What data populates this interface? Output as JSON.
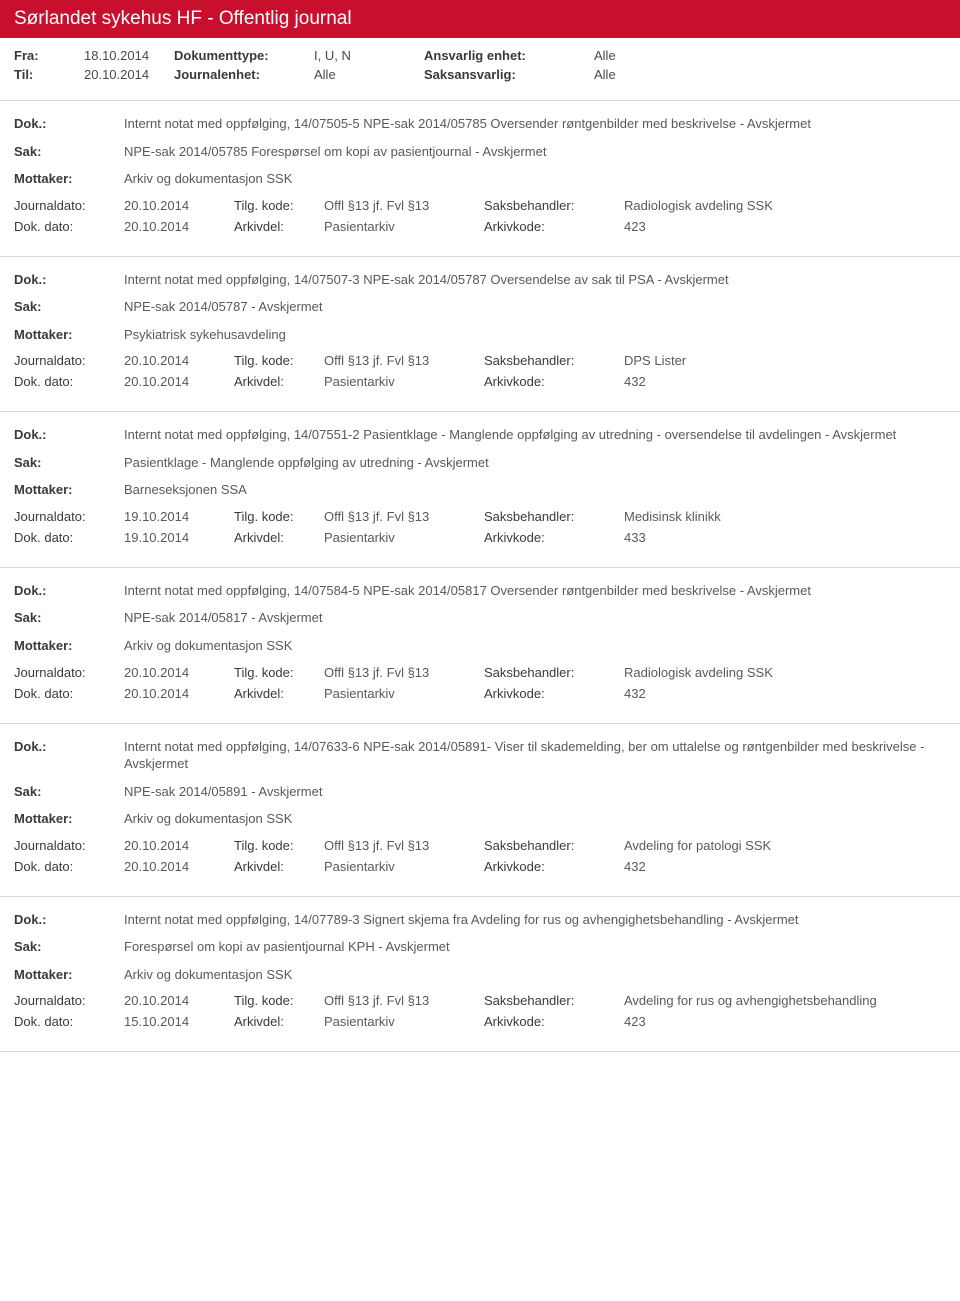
{
  "header": {
    "title": "Sørlandet sykehus HF - Offentlig journal"
  },
  "meta": {
    "fra_lbl": "Fra:",
    "fra_val": "18.10.2014",
    "til_lbl": "Til:",
    "til_val": "20.10.2014",
    "doktype_lbl": "Dokumenttype:",
    "doktype_val": "I, U, N",
    "journalenhet_lbl": "Journalenhet:",
    "journalenhet_val": "Alle",
    "ansvarlig_lbl": "Ansvarlig enhet:",
    "ansvarlig_val": "Alle",
    "saksansvarlig_lbl": "Saksansvarlig:",
    "saksansvarlig_val": "Alle"
  },
  "labels": {
    "dok": "Dok.:",
    "sak": "Sak:",
    "mottaker": "Mottaker:",
    "journaldato": "Journaldato:",
    "tilgkode": "Tilg. kode:",
    "saksbehandler": "Saksbehandler:",
    "dokdato": "Dok. dato:",
    "arkivdel": "Arkivdel:",
    "arkivkode": "Arkivkode:"
  },
  "entries": [
    {
      "dok": "Internt notat med oppfølging, 14/07505-5 NPE-sak 2014/05785 Oversender røntgenbilder med beskrivelse - Avskjermet",
      "sak": "NPE-sak 2014/05785 Forespørsel om kopi av pasientjournal - Avskjermet",
      "mottaker": "Arkiv og dokumentasjon SSK",
      "journaldato": "20.10.2014",
      "tilgkode": "Offl §13 jf. Fvl §13",
      "saksbehandler": "Radiologisk avdeling SSK",
      "dokdato": "20.10.2014",
      "arkivdel": "Pasientarkiv",
      "arkivkode": "423"
    },
    {
      "dok": "Internt notat med oppfølging, 14/07507-3 NPE-sak 2014/05787 Oversendelse av sak til PSA - Avskjermet",
      "sak": "NPE-sak 2014/05787 - Avskjermet",
      "mottaker": "Psykiatrisk sykehusavdeling",
      "journaldato": "20.10.2014",
      "tilgkode": "Offl §13 jf. Fvl §13",
      "saksbehandler": "DPS Lister",
      "dokdato": "20.10.2014",
      "arkivdel": "Pasientarkiv",
      "arkivkode": "432"
    },
    {
      "dok": "Internt notat med oppfølging, 14/07551-2 Pasientklage - Manglende oppfølging av utredning - oversendelse til avdelingen - Avskjermet",
      "sak": "Pasientklage - Manglende oppfølging av utredning - Avskjermet",
      "mottaker": "Barneseksjonen SSA",
      "journaldato": "19.10.2014",
      "tilgkode": "Offl §13 jf. Fvl §13",
      "saksbehandler": "Medisinsk klinikk",
      "dokdato": "19.10.2014",
      "arkivdel": "Pasientarkiv",
      "arkivkode": "433"
    },
    {
      "dok": "Internt notat med oppfølging, 14/07584-5 NPE-sak 2014/05817 Oversender røntgenbilder med beskrivelse - Avskjermet",
      "sak": "NPE-sak 2014/05817 - Avskjermet",
      "mottaker": "Arkiv og dokumentasjon SSK",
      "journaldato": "20.10.2014",
      "tilgkode": "Offl §13 jf. Fvl §13",
      "saksbehandler": "Radiologisk avdeling SSK",
      "dokdato": "20.10.2014",
      "arkivdel": "Pasientarkiv",
      "arkivkode": "432"
    },
    {
      "dok": "Internt notat med oppfølging, 14/07633-6 NPE-sak 2014/05891- Viser til skademelding, ber om uttalelse og røntgenbilder med beskrivelse - Avskjermet",
      "sak": "NPE-sak 2014/05891 - Avskjermet",
      "mottaker": "Arkiv og dokumentasjon SSK",
      "journaldato": "20.10.2014",
      "tilgkode": "Offl §13 jf. Fvl §13",
      "saksbehandler": "Avdeling for patologi SSK",
      "dokdato": "20.10.2014",
      "arkivdel": "Pasientarkiv",
      "arkivkode": "432"
    },
    {
      "dok": "Internt notat med oppfølging, 14/07789-3 Signert skjema fra Avdeling for rus og avhengighetsbehandling - Avskjermet",
      "sak": "Forespørsel om kopi av pasientjournal KPH - Avskjermet",
      "mottaker": "Arkiv og dokumentasjon SSK",
      "journaldato": "20.10.2014",
      "tilgkode": "Offl §13 jf. Fvl §13",
      "saksbehandler": "Avdeling for rus og avhengighetsbehandling",
      "dokdato": "15.10.2014",
      "arkivdel": "Pasientarkiv",
      "arkivkode": "423"
    }
  ]
}
